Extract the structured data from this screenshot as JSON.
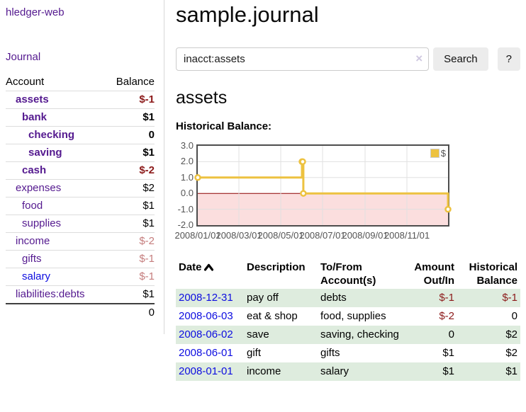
{
  "app": {
    "brand": "hledger-web",
    "nav_journal": "Journal"
  },
  "colors": {
    "link_purple": "#54198f",
    "link_blue": "#0d0de0",
    "negative": "#8c1a1a",
    "negative_dim": "#c57d7d",
    "row_green": "#deecde",
    "button_gray": "#ececec",
    "chart_gold": "#edc240"
  },
  "sidebar": {
    "header": {
      "account": "Account",
      "balance": "Balance"
    },
    "accounts": [
      {
        "name": "assets",
        "balance": "$-1",
        "indent": 1,
        "bold": true,
        "balance_class": "neg"
      },
      {
        "name": "bank",
        "balance": "$1",
        "indent": 2,
        "bold": true,
        "balance_class": ""
      },
      {
        "name": "checking",
        "balance": "0",
        "indent": 3,
        "bold": true,
        "balance_class": ""
      },
      {
        "name": "saving",
        "balance": "$1",
        "indent": 3,
        "bold": true,
        "balance_class": ""
      },
      {
        "name": "cash",
        "balance": "$-2",
        "indent": 2,
        "bold": true,
        "balance_class": "neg"
      },
      {
        "name": "expenses",
        "balance": "$2",
        "indent": 1,
        "bold": false,
        "balance_class": ""
      },
      {
        "name": "food",
        "balance": "$1",
        "indent": 2,
        "bold": false,
        "balance_class": ""
      },
      {
        "name": "supplies",
        "balance": "$1",
        "indent": 2,
        "bold": false,
        "balance_class": ""
      },
      {
        "name": "income",
        "balance": "$-2",
        "indent": 1,
        "bold": false,
        "balance_class": "dim"
      },
      {
        "name": "gifts",
        "balance": "$-1",
        "indent": 2,
        "bold": false,
        "balance_class": "dim"
      },
      {
        "name": "salary",
        "balance": "$-1",
        "indent": 2,
        "bold": false,
        "balance_class": "dim",
        "link_color": "blue"
      },
      {
        "name": "liabilities:debts",
        "balance": "$1",
        "indent": 1,
        "bold": false,
        "balance_class": ""
      }
    ],
    "total": "0"
  },
  "header": {
    "title": "sample.journal"
  },
  "search": {
    "value": "inacct:assets",
    "clear_label": "×",
    "button": "Search",
    "help_button": "?"
  },
  "account_page": {
    "heading": "assets",
    "chart_label": "Historical Balance:"
  },
  "chart_data": {
    "type": "line",
    "title": "Historical Balance",
    "legend": {
      "label": "$",
      "position": "top-right"
    },
    "series": [
      {
        "name": "$",
        "color": "#edc240",
        "step": true,
        "points": [
          [
            "2008-01-01",
            1
          ],
          [
            "2008-06-01",
            2
          ],
          [
            "2008-06-02",
            2
          ],
          [
            "2008-06-03",
            0
          ],
          [
            "2008-12-31",
            -1
          ]
        ]
      }
    ],
    "x_range": [
      "2008-01-01",
      "2008-12-31"
    ],
    "x_ticks": [
      {
        "date": "2008-01-01",
        "label": "2008/01/01"
      },
      {
        "date": "2008-03-01",
        "label": "2008/03/01"
      },
      {
        "date": "2008-05-01",
        "label": "2008/05/01"
      },
      {
        "date": "2008-07-01",
        "label": "2008/07/01"
      },
      {
        "date": "2008-09-01",
        "label": "2008/09/01"
      },
      {
        "date": "2008-11-01",
        "label": "2008/11/01"
      }
    ],
    "y_ticks": [
      {
        "value": 3,
        "label": "3.0"
      },
      {
        "value": 2,
        "label": "2.0"
      },
      {
        "value": 1,
        "label": "1.0"
      },
      {
        "value": 0,
        "label": "0.0"
      },
      {
        "value": -1,
        "label": "-1.0"
      },
      {
        "value": -2,
        "label": "-2.0"
      }
    ],
    "ylim": [
      -2,
      3
    ],
    "grid": true,
    "grid_color": "#e0e0e0",
    "zero_line_color": "#8b0000",
    "negative_region_color": "#fbdede",
    "point_fill": "#ffffff"
  },
  "register": {
    "columns": [
      "Date",
      "Description",
      "To/From Account(s)",
      "Amount Out/In",
      "Historical Balance"
    ],
    "sort_icon": "chevron-up",
    "rows": [
      {
        "date": "2008-12-31",
        "description": "pay off",
        "accounts": "debts",
        "amount": "$-1",
        "amount_neg": true,
        "balance": "$-1",
        "balance_neg": true
      },
      {
        "date": "2008-06-03",
        "description": "eat & shop",
        "accounts": "food, supplies",
        "amount": "$-2",
        "amount_neg": true,
        "balance": "0",
        "balance_neg": false
      },
      {
        "date": "2008-06-02",
        "description": "save",
        "accounts": "saving, checking",
        "amount": "0",
        "amount_neg": false,
        "balance": "$2",
        "balance_neg": false
      },
      {
        "date": "2008-06-01",
        "description": "gift",
        "accounts": "gifts",
        "amount": "$1",
        "amount_neg": false,
        "balance": "$2",
        "balance_neg": false
      },
      {
        "date": "2008-01-01",
        "description": "income",
        "accounts": "salary",
        "amount": "$1",
        "amount_neg": false,
        "balance": "$1",
        "balance_neg": false
      }
    ]
  }
}
